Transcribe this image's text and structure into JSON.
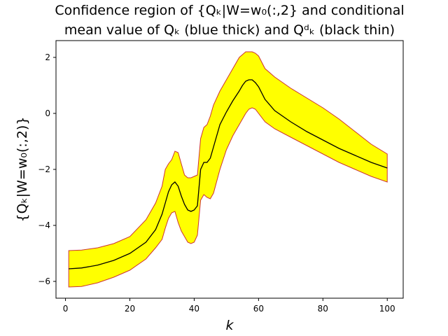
{
  "chart_data": {
    "type": "area",
    "title_lines": [
      "Confidence region of {Qₖ|W=w₀(:,2} and conditional",
      "mean value of Qₖ (blue thick) and Qᵈₖ (black thin)"
    ],
    "xlabel": "k",
    "ylabel": "{Qₖ|W=w₀(:,2)}",
    "xlim": [
      -2.95,
      104.95
    ],
    "ylim": [
      -6.6,
      2.6
    ],
    "xticks": [
      0,
      20,
      40,
      60,
      80,
      100
    ],
    "xtick_labels": [
      "0",
      "20",
      "40",
      "60",
      "80",
      "100"
    ],
    "yticks": [
      -6,
      -4,
      -2,
      0,
      2
    ],
    "ytick_labels": [
      "−6",
      "−4",
      "−2",
      "0",
      "2"
    ],
    "grid": false,
    "colors": {
      "band_fill": "#ffff00",
      "band_edge": "#cc3333",
      "mean_line": "#000000"
    },
    "series": [
      {
        "role": "upper",
        "x": [
          1,
          5,
          10,
          15,
          20,
          25,
          28,
          30,
          31,
          32,
          33,
          34,
          35,
          36,
          37,
          38,
          39,
          40,
          41,
          42,
          43,
          44,
          45,
          46,
          48,
          50,
          52,
          54,
          55,
          56,
          57,
          58,
          59,
          60,
          62,
          65,
          70,
          75,
          80,
          85,
          90,
          95,
          100
        ],
        "y": [
          -4.9,
          -4.88,
          -4.8,
          -4.65,
          -4.4,
          -3.8,
          -3.2,
          -2.6,
          -2.0,
          -1.8,
          -1.65,
          -1.35,
          -1.4,
          -1.8,
          -2.2,
          -2.3,
          -2.3,
          -2.25,
          -2.2,
          -0.9,
          -0.5,
          -0.4,
          -0.1,
          0.3,
          0.8,
          1.2,
          1.6,
          2.0,
          2.1,
          2.2,
          2.2,
          2.2,
          2.15,
          2.05,
          1.6,
          1.3,
          0.9,
          0.55,
          0.2,
          -0.2,
          -0.65,
          -1.1,
          -1.45
        ]
      },
      {
        "role": "mean",
        "x": [
          1,
          5,
          10,
          15,
          20,
          25,
          28,
          30,
          31,
          32,
          33,
          34,
          35,
          36,
          37,
          38,
          39,
          40,
          41,
          42,
          43,
          44,
          45,
          46,
          48,
          50,
          52,
          54,
          55,
          56,
          57,
          58,
          59,
          60,
          62,
          65,
          70,
          75,
          80,
          85,
          90,
          95,
          100
        ],
        "y": [
          -5.55,
          -5.52,
          -5.42,
          -5.25,
          -5.0,
          -4.6,
          -4.15,
          -3.6,
          -3.2,
          -2.8,
          -2.55,
          -2.45,
          -2.6,
          -2.95,
          -3.25,
          -3.45,
          -3.5,
          -3.45,
          -3.3,
          -2.0,
          -1.75,
          -1.75,
          -1.6,
          -1.2,
          -0.4,
          0.05,
          0.45,
          0.8,
          1.0,
          1.15,
          1.2,
          1.2,
          1.1,
          0.95,
          0.5,
          0.1,
          -0.3,
          -0.65,
          -0.95,
          -1.25,
          -1.5,
          -1.75,
          -1.95
        ]
      },
      {
        "role": "lower",
        "x": [
          1,
          5,
          10,
          15,
          20,
          25,
          28,
          30,
          31,
          32,
          33,
          34,
          35,
          36,
          37,
          38,
          39,
          40,
          41,
          42,
          43,
          44,
          45,
          46,
          48,
          50,
          52,
          54,
          55,
          56,
          57,
          58,
          59,
          60,
          62,
          65,
          70,
          75,
          80,
          85,
          90,
          95,
          100
        ],
        "y": [
          -6.2,
          -6.18,
          -6.05,
          -5.85,
          -5.6,
          -5.2,
          -4.8,
          -4.5,
          -4.1,
          -3.75,
          -3.55,
          -3.5,
          -3.9,
          -4.2,
          -4.4,
          -4.6,
          -4.65,
          -4.6,
          -4.35,
          -3.1,
          -2.9,
          -3.0,
          -3.05,
          -2.85,
          -2.0,
          -1.3,
          -0.8,
          -0.4,
          -0.2,
          0.0,
          0.15,
          0.2,
          0.15,
          0.0,
          -0.3,
          -0.55,
          -0.85,
          -1.15,
          -1.45,
          -1.75,
          -2.0,
          -2.25,
          -2.45
        ]
      }
    ]
  }
}
